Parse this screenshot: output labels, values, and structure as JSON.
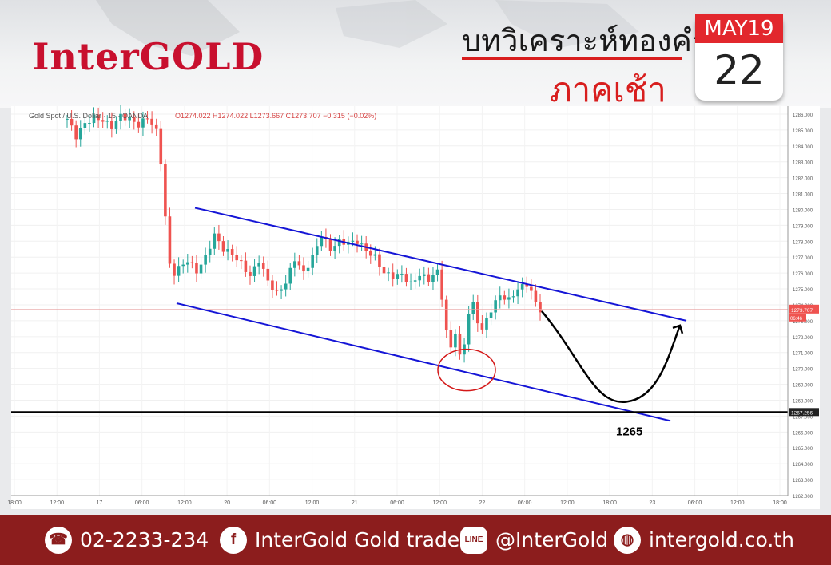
{
  "brand": {
    "logo_text": "InterGOLD",
    "color": "#c8102e"
  },
  "header": {
    "title_line1": "บทวิเคราะห์ทองคำ",
    "title_line2": "ภาคเช้า"
  },
  "calendar": {
    "month_day": "MAY19",
    "date": "22"
  },
  "chart_data": {
    "type": "line",
    "symbol_label": "Gold Spot / U.S. Dollar · 15 · OANDA",
    "ohlc_text": "O1274.022  H1274.022  L1273.667  C1273.707  −0.315 (−0.02%)",
    "ohlc": {
      "open": 1274.022,
      "high": 1274.022,
      "low": 1273.667,
      "close": 1273.707,
      "change": -0.315,
      "change_pct": -0.02
    },
    "ylim": [
      1262,
      1286.5
    ],
    "y_ticks": [
      "1286.000",
      "1285.000",
      "1284.000",
      "1283.000",
      "1282.000",
      "1281.000",
      "1280.000",
      "1279.000",
      "1278.000",
      "1277.000",
      "1276.000",
      "1275.000",
      "1274.000",
      "1273.000",
      "1272.000",
      "1271.000",
      "1270.000",
      "1269.000",
      "1268.000",
      "1267.000",
      "1266.000",
      "1265.000",
      "1264.000",
      "1263.000",
      "1262.000"
    ],
    "x_ticks": [
      "18:00",
      "12:00",
      "17",
      "06:00",
      "12:00",
      "20",
      "06:00",
      "12:00",
      "21",
      "06:00",
      "12:00",
      "22",
      "06:00",
      "12:00",
      "18:00",
      "23",
      "06:00",
      "12:00",
      "18:00"
    ],
    "price_path": [
      [
        0,
        1285.7
      ],
      [
        2,
        1284.6
      ],
      [
        4,
        1285.4
      ],
      [
        6,
        1285.8
      ],
      [
        8,
        1285.6
      ],
      [
        10,
        1285.2
      ],
      [
        12,
        1285.9
      ],
      [
        14,
        1285.7
      ],
      [
        16,
        1285.3
      ],
      [
        18,
        1285.8
      ],
      [
        20,
        1284.9
      ],
      [
        21,
        1283.0
      ],
      [
        22,
        1279.5
      ],
      [
        23,
        1276.5
      ],
      [
        24,
        1276.0
      ],
      [
        25,
        1276.3
      ],
      [
        27,
        1276.8
      ],
      [
        29,
        1276.1
      ],
      [
        31,
        1277.0
      ],
      [
        33,
        1278.4
      ],
      [
        35,
        1277.5
      ],
      [
        37,
        1277.2
      ],
      [
        39,
        1276.6
      ],
      [
        41,
        1275.8
      ],
      [
        43,
        1276.8
      ],
      [
        45,
        1275.5
      ],
      [
        47,
        1274.7
      ],
      [
        49,
        1275.4
      ],
      [
        51,
        1276.9
      ],
      [
        53,
        1276.0
      ],
      [
        55,
        1277.0
      ],
      [
        57,
        1278.4
      ],
      [
        59,
        1277.5
      ],
      [
        61,
        1278.0
      ],
      [
        63,
        1277.9
      ],
      [
        65,
        1278.0
      ],
      [
        67,
        1277.4
      ],
      [
        69,
        1277.0
      ],
      [
        71,
        1276.0
      ],
      [
        73,
        1275.8
      ],
      [
        75,
        1275.9
      ],
      [
        77,
        1275.3
      ],
      [
        79,
        1275.9
      ],
      [
        81,
        1275.6
      ],
      [
        83,
        1276.1
      ],
      [
        84,
        1274.5
      ],
      [
        85,
        1272.3
      ],
      [
        86,
        1271.3
      ],
      [
        87,
        1272.3
      ],
      [
        88,
        1270.7
      ],
      [
        89,
        1271.6
      ],
      [
        90,
        1273.5
      ],
      [
        91,
        1274.0
      ],
      [
        92,
        1273.0
      ],
      [
        93,
        1272.4
      ],
      [
        95,
        1273.7
      ],
      [
        97,
        1274.6
      ],
      [
        99,
        1274.3
      ],
      [
        101,
        1275.0
      ],
      [
        103,
        1275.3
      ],
      [
        104,
        1274.8
      ],
      [
        105,
        1274.1
      ],
      [
        106,
        1273.7
      ]
    ],
    "channel_upper": [
      [
        1280.1,
        0
      ],
      [
        1273.0,
        1
      ]
    ],
    "channel_lower": [
      [
        1274.1,
        0
      ],
      [
        1266.7,
        1
      ]
    ],
    "support_level": 1267.256,
    "support_label": "1267.256",
    "last_price": 1273.707,
    "last_price_label": "1273.707",
    "countdown": "06:46",
    "target_label": "1265",
    "projection": "down-then-up"
  },
  "colors": {
    "channel": "#1515d6",
    "support": "#000000",
    "circle": "#d41818",
    "candle_up": "#26a69a",
    "candle_down": "#ef5350",
    "footer_bg": "#8c1d1d"
  },
  "footer": {
    "phone": "02-2233-234",
    "facebook": "InterGold Gold trade",
    "line": "@InterGold",
    "website": "intergold.co.th",
    "icons": [
      "phone-icon",
      "facebook-icon",
      "line-icon",
      "globe-icon"
    ]
  }
}
